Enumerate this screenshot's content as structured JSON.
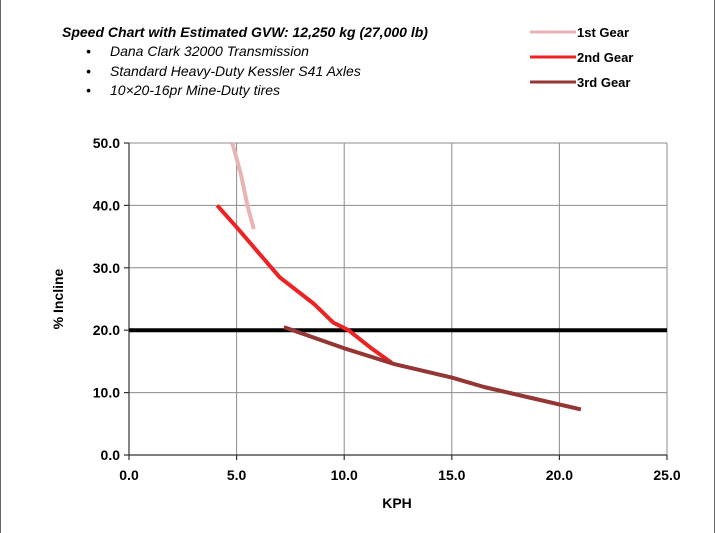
{
  "chart_data": {
    "type": "line",
    "title": "Speed Chart with Estimated GVW: 12,250 kg (27,000 lb)",
    "notes": [
      "Dana Clark 32000 Transmission",
      "Standard Heavy-Duty Kessler S41 Axles",
      "10×20-16pr Mine-Duty tires"
    ],
    "xlabel": "KPH",
    "ylabel": "% Incline",
    "xlim": [
      0,
      25
    ],
    "ylim": [
      0,
      50
    ],
    "x_ticks": [
      "0.0",
      "5.0",
      "10.0",
      "15.0",
      "20.0",
      "25.0"
    ],
    "y_ticks": [
      "0.0",
      "10.0",
      "20.0",
      "30.0",
      "40.0",
      "50.0"
    ],
    "grid": true,
    "legend_position": "top-right",
    "reference_line": {
      "y": 20,
      "color": "#000000"
    },
    "series": [
      {
        "name": "1st Gear",
        "color": "#e8b4b4",
        "points": [
          [
            4.8,
            50.0
          ],
          [
            5.2,
            45.0
          ],
          [
            5.5,
            40.0
          ],
          [
            5.8,
            36.2
          ]
        ]
      },
      {
        "name": "2nd Gear",
        "color": "#ee2222",
        "points": [
          [
            4.1,
            40.0
          ],
          [
            5.0,
            36.5
          ],
          [
            6.0,
            32.5
          ],
          [
            7.0,
            28.5
          ],
          [
            8.6,
            24.2
          ],
          [
            9.5,
            21.2
          ],
          [
            10.2,
            20.0
          ],
          [
            11.3,
            17.0
          ],
          [
            12.2,
            14.8
          ]
        ]
      },
      {
        "name": "3rd Gear",
        "color": "#943634",
        "points": [
          [
            7.2,
            20.5
          ],
          [
            10.0,
            17.1
          ],
          [
            12.3,
            14.6
          ],
          [
            15.0,
            12.4
          ],
          [
            16.5,
            10.9
          ],
          [
            18.5,
            9.3
          ],
          [
            21.0,
            7.3
          ]
        ]
      }
    ]
  }
}
